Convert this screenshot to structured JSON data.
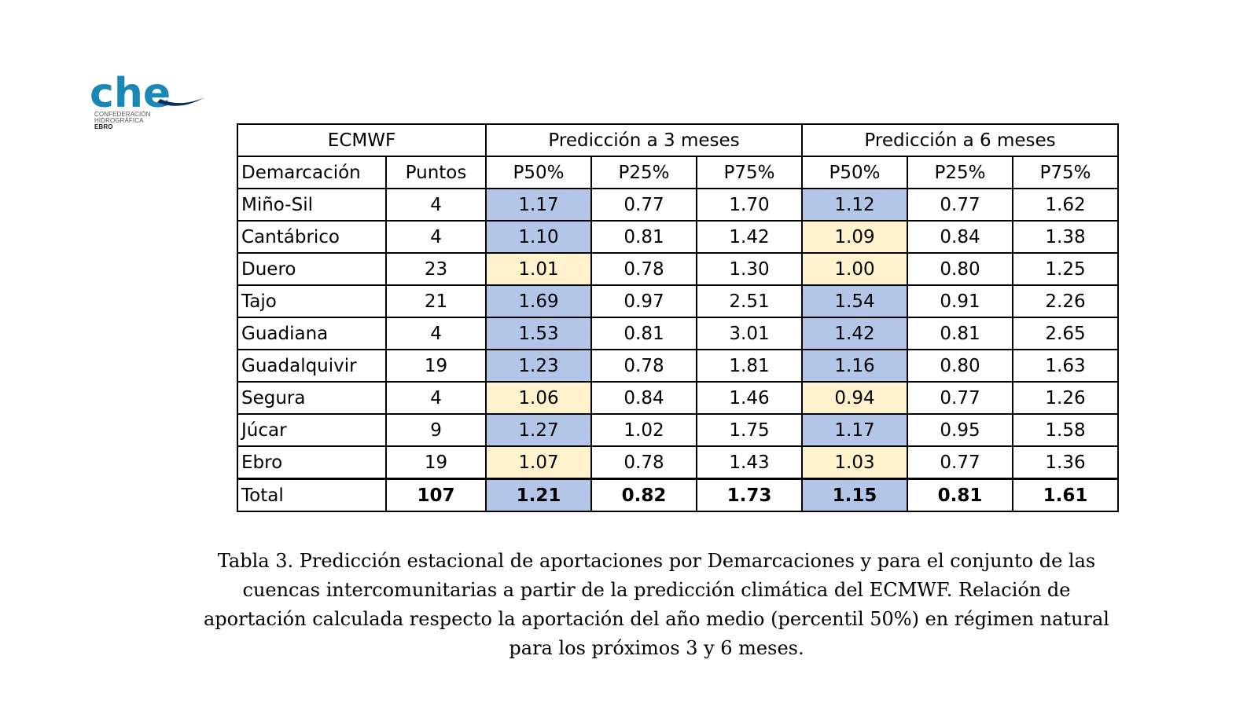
{
  "logo": {
    "text": "che",
    "line1": "CONFEDERACIÓN",
    "line2": "HIDROGRÁFICA",
    "line3": "EBRO",
    "colors": {
      "primary": "#1a88b5",
      "secondary": "#0e2e5c"
    }
  },
  "table": {
    "group_headers": [
      "ECMWF",
      "Predicción a 3 meses",
      "Predicción a 6 meses"
    ],
    "columns": [
      "Demarcación",
      "Puntos",
      "P50%",
      "P25%",
      "P75%",
      "P50%",
      "P25%",
      "P75%"
    ],
    "rows": [
      {
        "demarcacion": "Miño-Sil",
        "puntos": "4",
        "p3_50": "1.17",
        "p3_25": "0.77",
        "p3_75": "1.70",
        "p6_50": "1.12",
        "p6_25": "0.77",
        "p6_75": "1.62",
        "p3_50_hl": "blue",
        "p6_50_hl": "blue"
      },
      {
        "demarcacion": "Cantábrico",
        "puntos": "4",
        "p3_50": "1.10",
        "p3_25": "0.81",
        "p3_75": "1.42",
        "p6_50": "1.09",
        "p6_25": "0.84",
        "p6_75": "1.38",
        "p3_50_hl": "blue",
        "p6_50_hl": "yellow"
      },
      {
        "demarcacion": "Duero",
        "puntos": "23",
        "p3_50": "1.01",
        "p3_25": "0.78",
        "p3_75": "1.30",
        "p6_50": "1.00",
        "p6_25": "0.80",
        "p6_75": "1.25",
        "p3_50_hl": "yellow",
        "p6_50_hl": "yellow"
      },
      {
        "demarcacion": "Tajo",
        "puntos": "21",
        "p3_50": "1.69",
        "p3_25": "0.97",
        "p3_75": "2.51",
        "p6_50": "1.54",
        "p6_25": "0.91",
        "p6_75": "2.26",
        "p3_50_hl": "blue",
        "p6_50_hl": "blue"
      },
      {
        "demarcacion": "Guadiana",
        "puntos": "4",
        "p3_50": "1.53",
        "p3_25": "0.81",
        "p3_75": "3.01",
        "p6_50": "1.42",
        "p6_25": "0.81",
        "p6_75": "2.65",
        "p3_50_hl": "blue",
        "p6_50_hl": "blue"
      },
      {
        "demarcacion": "Guadalquivir",
        "puntos": "19",
        "p3_50": "1.23",
        "p3_25": "0.78",
        "p3_75": "1.81",
        "p6_50": "1.16",
        "p6_25": "0.80",
        "p6_75": "1.63",
        "p3_50_hl": "blue",
        "p6_50_hl": "blue"
      },
      {
        "demarcacion": "Segura",
        "puntos": "4",
        "p3_50": "1.06",
        "p3_25": "0.84",
        "p3_75": "1.46",
        "p6_50": "0.94",
        "p6_25": "0.77",
        "p6_75": "1.26",
        "p3_50_hl": "yellow",
        "p6_50_hl": "yellow"
      },
      {
        "demarcacion": "Júcar",
        "puntos": "9",
        "p3_50": "1.27",
        "p3_25": "1.02",
        "p3_75": "1.75",
        "p6_50": "1.17",
        "p6_25": "0.95",
        "p6_75": "1.58",
        "p3_50_hl": "blue",
        "p6_50_hl": "blue"
      },
      {
        "demarcacion": "Ebro",
        "puntos": "19",
        "p3_50": "1.07",
        "p3_25": "0.78",
        "p3_75": "1.43",
        "p6_50": "1.03",
        "p6_25": "0.77",
        "p6_75": "1.36",
        "p3_50_hl": "yellow",
        "p6_50_hl": "yellow"
      }
    ],
    "total": {
      "demarcacion": "Total",
      "puntos": "107",
      "p3_50": "1.21",
      "p3_25": "0.82",
      "p3_75": "1.73",
      "p6_50": "1.15",
      "p6_25": "0.81",
      "p6_75": "1.61"
    },
    "highlight_colors": {
      "blue": "#b4c6e7",
      "yellow": "#fff2cc"
    }
  },
  "caption": {
    "line1": "Tabla 3. Predicción estacional de aportaciones por Demarcaciones y para el conjunto de las",
    "line2": "cuencas intercomunitarias a partir de la predicción climática del ECMWF. Relación de",
    "line3": "aportación calculada respecto la aportación del año medio (percentil 50%) en régimen natural",
    "line4": "para los próximos 3 y 6 meses."
  }
}
